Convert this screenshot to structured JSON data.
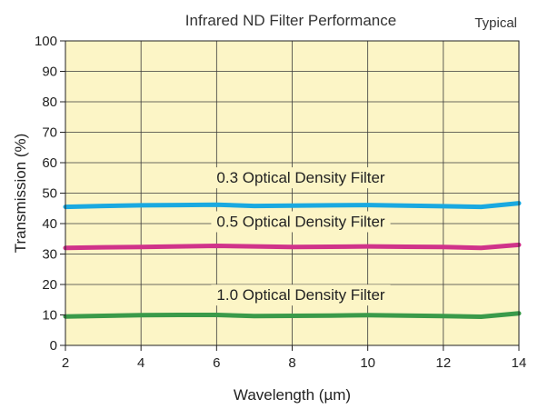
{
  "chart_data": {
    "type": "line",
    "title": "Infrared ND Filter Performance",
    "subtitle": "Typical",
    "xlabel": "Wavelength (µm)",
    "ylabel": "Transmission (%)",
    "xlim": [
      2,
      14
    ],
    "ylim": [
      0,
      100
    ],
    "xticks": [
      2,
      4,
      6,
      8,
      10,
      12,
      14
    ],
    "yticks": [
      0,
      10,
      20,
      30,
      40,
      50,
      60,
      70,
      80,
      90,
      100
    ],
    "grid": true,
    "background_color": "#fcf5c6",
    "series": [
      {
        "name": "0.3 Optical Density Filter",
        "color": "#1aa9e0",
        "x": [
          2,
          3,
          4,
          5,
          6,
          7,
          8,
          9,
          10,
          11,
          12,
          13,
          14
        ],
        "y": [
          45.5,
          45.8,
          46.0,
          46.1,
          46.2,
          45.8,
          45.9,
          46.0,
          46.1,
          45.9,
          45.7,
          45.5,
          46.7
        ]
      },
      {
        "name": "0.5 Optical Density Filter",
        "color": "#d0338a",
        "x": [
          2,
          3,
          4,
          5,
          6,
          7,
          8,
          9,
          10,
          11,
          12,
          13,
          14
        ],
        "y": [
          32.0,
          32.2,
          32.3,
          32.5,
          32.7,
          32.5,
          32.3,
          32.4,
          32.5,
          32.4,
          32.3,
          32.0,
          33.0
        ]
      },
      {
        "name": "1.0 Optical Density Filter",
        "color": "#3a9a4a",
        "x": [
          2,
          3,
          4,
          5,
          6,
          7,
          8,
          9,
          10,
          11,
          12,
          13,
          14
        ],
        "y": [
          9.5,
          9.7,
          9.9,
          10.0,
          10.0,
          9.6,
          9.7,
          9.8,
          9.9,
          9.8,
          9.6,
          9.4,
          10.5
        ]
      }
    ]
  }
}
